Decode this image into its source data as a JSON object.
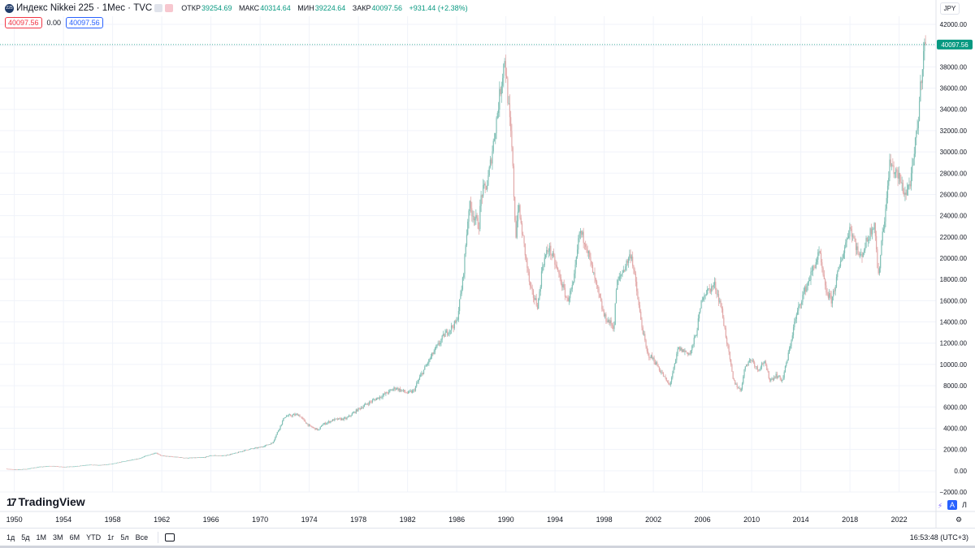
{
  "header": {
    "symbol_badge": "225",
    "title": "Индекс Nikkei 225 · 1Мес · TVC",
    "ohlc": [
      {
        "key": "ОТКР",
        "value": "39254.69"
      },
      {
        "key": "МАКС",
        "value": "40314.64"
      },
      {
        "key": "МИН",
        "value": "39224.64"
      },
      {
        "key": "ЗАКР",
        "value": "40097.56"
      }
    ],
    "change": "+931.44 (+2.38%)",
    "sell_price": "40097.56",
    "spread": "0.00",
    "buy_price": "40097.56",
    "currency": "JPY"
  },
  "branding": {
    "logo_text": "TradingView"
  },
  "toolbar": {
    "timeframes": [
      "1д",
      "5д",
      "1М",
      "3М",
      "6М",
      "YTD",
      "1г",
      "5л",
      "Все"
    ],
    "clock": "16:53:48 (UTC+3)",
    "auto_label": "A",
    "log_label": "Л"
  },
  "colors": {
    "up": "#089981",
    "down": "#f23645",
    "up_wick": "#7fbfb5",
    "down_wick": "#e2a8a8",
    "price_line": "#089981",
    "grid": "#f0f3fa"
  },
  "chart_data": {
    "type": "candlestick",
    "title": "Индекс Nikkei 225 · 1Мес · TVC",
    "xlabel": "",
    "ylabel": "",
    "ylim": [
      -2000,
      42000
    ],
    "xlim": [
      1949.1,
      2025.0
    ],
    "grid": true,
    "last_price": 40097.56,
    "last_price_label": "40097.56",
    "y_ticks": [
      42000,
      40000,
      38000,
      36000,
      34000,
      32000,
      30000,
      28000,
      26000,
      24000,
      22000,
      20000,
      18000,
      16000,
      14000,
      12000,
      10000,
      8000,
      6000,
      4000,
      2000,
      0,
      -2000
    ],
    "y_tick_labels": [
      "42000.00",
      "40000.00",
      "38000.00",
      "36000.00",
      "34000.00",
      "32000.00",
      "30000.00",
      "28000.00",
      "26000.00",
      "24000.00",
      "22000.00",
      "20000.00",
      "18000.00",
      "16000.00",
      "14000.00",
      "12000.00",
      "10000.00",
      "8000.00",
      "6000.00",
      "4000.00",
      "2000.00",
      "0.00",
      "−2000.00"
    ],
    "x_ticks": [
      1950,
      1954,
      1958,
      1962,
      1966,
      1970,
      1974,
      1978,
      1982,
      1986,
      1990,
      1994,
      1998,
      2002,
      2006,
      2010,
      2014,
      2018,
      2022
    ],
    "x_tick_labels": [
      "1950",
      "1954",
      "1958",
      "1962",
      "1966",
      "1970",
      "1974",
      "1978",
      "1982",
      "1986",
      "1990",
      "1994",
      "1998",
      "2002",
      "2006",
      "2010",
      "2014",
      "2018",
      "2022"
    ],
    "series": [
      {
        "x": [
          1949.4,
          1950,
          1951,
          1952,
          1953,
          1954,
          1955,
          1956,
          1957,
          1958,
          1959,
          1960,
          1961.5,
          1962,
          1963,
          1964,
          1965.5,
          1966,
          1967,
          1968,
          1969,
          1970,
          1971,
          1972,
          1973.1,
          1973.5,
          1974,
          1974.8,
          1975,
          1976,
          1977,
          1978,
          1979,
          1980,
          1981,
          1982,
          1982.5,
          1983,
          1984,
          1985,
          1986,
          1986.5,
          1987,
          1987.8,
          1988,
          1988.5,
          1989,
          1989.9,
          1990.5,
          1990.8,
          1991,
          1992,
          1992.6,
          1993,
          1993.5,
          1994,
          1995,
          1995.5,
          1996,
          1996.5,
          1997,
          1998,
          1998.8,
          1999,
          2000.2,
          2001,
          2001.5,
          2002,
          2003.3,
          2003.8,
          2004,
          2005,
          2005.5,
          2006,
          2007,
          2007.5,
          2008,
          2008.5,
          2009.1,
          2009.5,
          2010,
          2010.5,
          2011,
          2011.5,
          2012,
          2012.5,
          2013,
          2013.5,
          2014,
          2015.5,
          2016,
          2016.5,
          2017,
          2018,
          2018.8,
          2019,
          2020,
          2020.3,
          2020.6,
          2021,
          2021.2,
          2022,
          2022.5,
          2023,
          2023.5,
          2024
        ],
        "y": [
          180,
          100,
          160,
          360,
          450,
          350,
          420,
          560,
          520,
          650,
          900,
          1100,
          1700,
          1400,
          1300,
          1200,
          1250,
          1450,
          1400,
          1650,
          2000,
          2200,
          2600,
          5100,
          5300,
          4800,
          4200,
          3800,
          4300,
          4800,
          4900,
          5800,
          6500,
          7100,
          7800,
          7300,
          7500,
          8800,
          10900,
          12800,
          14000,
          18000,
          25000,
          23000,
          26000,
          27000,
          31000,
          38900,
          30000,
          22000,
          25000,
          17000,
          15500,
          19500,
          21000,
          19500,
          16000,
          17500,
          22500,
          21500,
          19000,
          14500,
          13500,
          17500,
          20500,
          14000,
          11000,
          10500,
          8000,
          10200,
          11500,
          11000,
          13000,
          16500,
          17500,
          15500,
          12000,
          8500,
          7500,
          10000,
          10500,
          9500,
          10300,
          8500,
          9000,
          8500,
          11000,
          14000,
          16000,
          20500,
          17000,
          16000,
          18500,
          23000,
          20000,
          20500,
          23500,
          18000,
          22000,
          25500,
          29000,
          27500,
          26000,
          27500,
          32500,
          40000
        ]
      }
    ]
  }
}
